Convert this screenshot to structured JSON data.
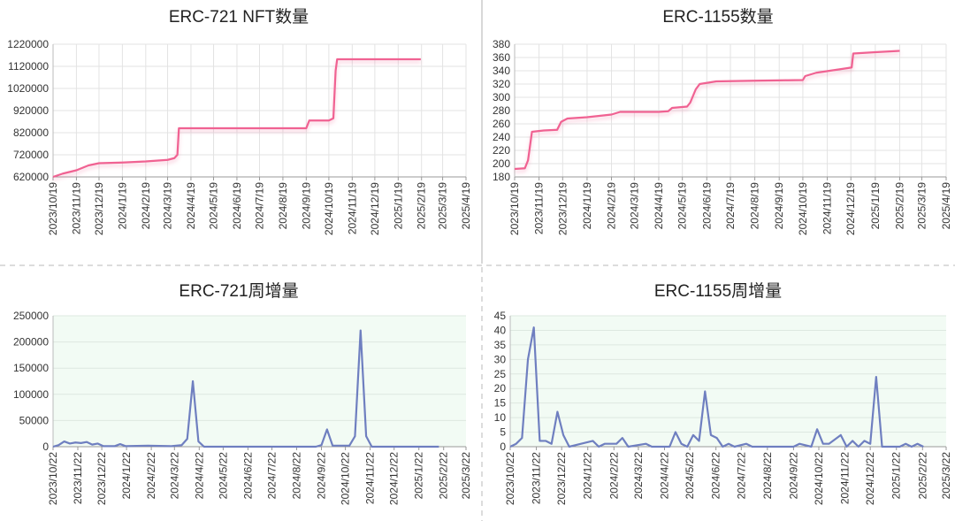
{
  "chart_data": [
    {
      "type": "line",
      "title": "ERC-721 NFT数量",
      "color": "#f06292",
      "grid": true,
      "xgrid": true,
      "shadow": true,
      "xlim": [
        "2023/10/19",
        "2025/4/19"
      ],
      "xticks": [
        "2023/10/19",
        "2023/11/19",
        "2023/12/19",
        "2024/1/19",
        "2024/2/19",
        "2024/3/19",
        "2024/4/19",
        "2024/5/19",
        "2024/6/19",
        "2024/7/19",
        "2024/8/19",
        "2024/9/19",
        "2024/10/19",
        "2024/11/19",
        "2024/12/19",
        "2025/1/19",
        "2025/2/19",
        "2025/3/19",
        "2025/4/19"
      ],
      "ylim": [
        620000,
        1220000
      ],
      "yticks": [
        620000,
        720000,
        820000,
        920000,
        1020000,
        1120000,
        1220000
      ],
      "x": [
        "2023/10/19",
        "2023/11/1",
        "2023/11/19",
        "2023/12/5",
        "2023/12/19",
        "2024/1/19",
        "2024/2/19",
        "2024/3/19",
        "2024/3/28",
        "2024/4/1",
        "2024/4/3",
        "2024/5/19",
        "2024/7/19",
        "2024/9/19",
        "2024/9/23",
        "2024/10/19",
        "2024/10/25",
        "2024/10/28",
        "2024/10/30",
        "2024/12/19",
        "2025/2/18"
      ],
      "values": [
        620000,
        635000,
        650000,
        672000,
        682000,
        685000,
        690000,
        697000,
        705000,
        720000,
        840000,
        840000,
        840000,
        840000,
        875000,
        875000,
        885000,
        1100000,
        1152000,
        1152000,
        1152000
      ]
    },
    {
      "type": "line",
      "title": "ERC-1155数量",
      "color": "#f06292",
      "grid": true,
      "xgrid": true,
      "shadow": true,
      "xlim": [
        "2023/10/19",
        "2025/4/19"
      ],
      "xticks": [
        "2023/10/19",
        "2023/11/19",
        "2023/12/19",
        "2024/1/19",
        "2024/2/19",
        "2024/3/19",
        "2024/4/19",
        "2024/5/19",
        "2024/6/19",
        "2024/7/19",
        "2024/8/19",
        "2024/9/19",
        "2024/10/19",
        "2024/11/19",
        "2024/12/19",
        "2025/1/19",
        "2025/2/19",
        "2025/3/19",
        "2025/4/19"
      ],
      "ylim": [
        180,
        380
      ],
      "yticks": [
        180,
        200,
        220,
        240,
        260,
        280,
        300,
        320,
        340,
        360,
        380
      ],
      "x": [
        "2023/10/19",
        "2023/11/1",
        "2023/11/5",
        "2023/11/10",
        "2023/11/25",
        "2023/12/12",
        "2023/12/17",
        "2023/12/25",
        "2024/1/19",
        "2024/2/19",
        "2024/3/1",
        "2024/4/19",
        "2024/5/1",
        "2024/5/6",
        "2024/5/25",
        "2024/5/29",
        "2024/6/5",
        "2024/6/10",
        "2024/7/1",
        "2024/8/19",
        "2024/10/19",
        "2024/10/22",
        "2024/11/5",
        "2024/12/15",
        "2024/12/20",
        "2024/12/22",
        "2025/1/19",
        "2025/2/19"
      ],
      "values": [
        192,
        193,
        205,
        248,
        250,
        251,
        263,
        268,
        270,
        274,
        278,
        278,
        279,
        284,
        286,
        292,
        312,
        320,
        324,
        325,
        326,
        332,
        337,
        344,
        345,
        366,
        368,
        370
      ]
    },
    {
      "type": "line",
      "title": "ERC-721周增量",
      "color": "#6f7fc0",
      "grid": true,
      "xgrid": false,
      "background": "#f2fbf4",
      "xlim": [
        "2023/10/22",
        "2025/3/22"
      ],
      "xticks": [
        "2023/10/22",
        "2023/11/22",
        "2023/12/22",
        "2024/1/22",
        "2024/2/22",
        "2024/3/22",
        "2024/4/22",
        "2024/5/22",
        "2024/6/22",
        "2024/7/22",
        "2024/8/22",
        "2024/9/22",
        "2024/10/22",
        "2024/11/22",
        "2024/12/22",
        "2025/1/22",
        "2025/2/22",
        "2025/3/22"
      ],
      "ylim": [
        0,
        250000
      ],
      "yticks": [
        0,
        50000,
        100000,
        150000,
        200000,
        250000
      ],
      "x": [
        "2023/10/22",
        "2023/10/29",
        "2023/11/5",
        "2023/11/12",
        "2023/11/19",
        "2023/11/26",
        "2023/12/3",
        "2023/12/10",
        "2023/12/17",
        "2023/12/24",
        "2024/1/7",
        "2024/1/14",
        "2024/1/21",
        "2024/2/18",
        "2024/3/17",
        "2024/3/31",
        "2024/4/7",
        "2024/4/14",
        "2024/4/21",
        "2024/4/28",
        "2024/9/15",
        "2024/9/22",
        "2024/9/29",
        "2024/10/6",
        "2024/10/27",
        "2024/11/3",
        "2024/11/10",
        "2024/11/17",
        "2024/11/24",
        "2025/2/16"
      ],
      "values": [
        0,
        3000,
        10000,
        6000,
        8000,
        7000,
        9000,
        4000,
        6000,
        1000,
        1000,
        5000,
        1000,
        2000,
        1000,
        3000,
        15000,
        125000,
        10000,
        0,
        0,
        3000,
        33000,
        2000,
        2000,
        20000,
        222000,
        20000,
        0,
        0
      ]
    },
    {
      "type": "line",
      "title": "ERC-1155周增量",
      "color": "#6f7fc0",
      "grid": true,
      "xgrid": false,
      "background": "#f2fbf4",
      "xlim": [
        "2023/10/22",
        "2025/3/22"
      ],
      "xticks": [
        "2023/10/22",
        "2023/11/22",
        "2023/12/22",
        "2024/1/22",
        "2024/2/22",
        "2024/3/22",
        "2024/4/22",
        "2024/5/22",
        "2024/6/22",
        "2024/7/22",
        "2024/8/22",
        "2024/9/22",
        "2024/10/22",
        "2024/11/22",
        "2024/12/22",
        "2025/1/22",
        "2025/2/22",
        "2025/3/22"
      ],
      "ylim": [
        0,
        45
      ],
      "yticks": [
        0,
        5,
        10,
        15,
        20,
        25,
        30,
        35,
        40,
        45
      ],
      "x": [
        "2023/10/22",
        "2023/10/29",
        "2023/11/5",
        "2023/11/12",
        "2023/11/19",
        "2023/11/26",
        "2023/12/3",
        "2023/12/10",
        "2023/12/17",
        "2023/12/24",
        "2023/12/31",
        "2024/1/14",
        "2024/1/28",
        "2024/2/4",
        "2024/2/11",
        "2024/2/25",
        "2024/3/3",
        "2024/3/10",
        "2024/3/31",
        "2024/4/7",
        "2024/4/28",
        "2024/5/5",
        "2024/5/12",
        "2024/5/19",
        "2024/5/26",
        "2024/6/2",
        "2024/6/9",
        "2024/6/16",
        "2024/6/23",
        "2024/6/30",
        "2024/7/7",
        "2024/7/14",
        "2024/7/28",
        "2024/8/4",
        "2024/9/22",
        "2024/9/29",
        "2024/10/13",
        "2024/10/20",
        "2024/10/27",
        "2024/11/3",
        "2024/11/17",
        "2024/11/24",
        "2024/12/1",
        "2024/12/8",
        "2024/12/15",
        "2024/12/22",
        "2024/12/29",
        "2025/1/5",
        "2025/1/26",
        "2025/2/2",
        "2025/2/9",
        "2025/2/16",
        "2025/2/23"
      ],
      "values": [
        0,
        1,
        3,
        30,
        41,
        2,
        2,
        1,
        12,
        4,
        0,
        1,
        2,
        0,
        1,
        1,
        3,
        0,
        1,
        0,
        0,
        5,
        1,
        0,
        4,
        2,
        19,
        4,
        3,
        0,
        1,
        0,
        1,
        0,
        0,
        1,
        0,
        6,
        1,
        1,
        4,
        0,
        2,
        0,
        2,
        1,
        24,
        0,
        0,
        1,
        0,
        1,
        0
      ]
    }
  ]
}
